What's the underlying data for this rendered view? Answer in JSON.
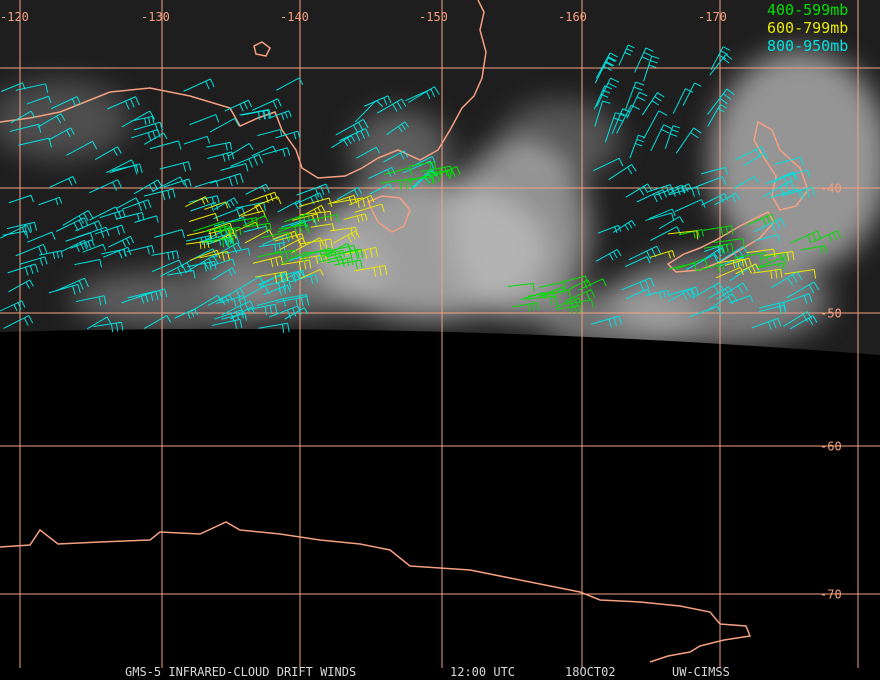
{
  "map": {
    "longitude_labels": [
      "-120",
      "-130",
      "-140",
      "-150",
      "-160",
      "-170"
    ],
    "latitude_labels": [
      "-40",
      "-50",
      "-60",
      "-70"
    ],
    "legend": [
      {
        "label": "400-599mb",
        "color": "#00e000"
      },
      {
        "label": "600-799mb",
        "color": "#e8e800"
      },
      {
        "label": "800-950mb",
        "color": "#00e0e0"
      }
    ],
    "footer": [
      "GMS-5 INFRARED-CLOUD DRIFT WINDS",
      "12:00 UTC",
      "18OCT02",
      "UW-CIMSS"
    ]
  }
}
